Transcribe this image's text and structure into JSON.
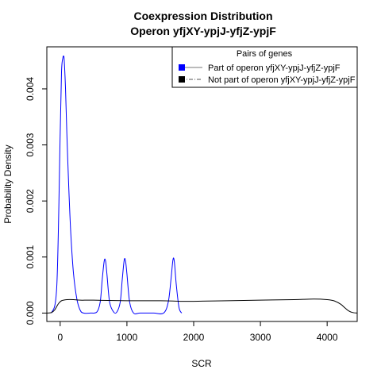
{
  "chart_data": {
    "type": "line",
    "title": "Coexpression Distribution",
    "subtitle": "Operon yfjXY-ypjJ-yfjZ-ypjF",
    "xlabel": "SCR",
    "ylabel": "Probability Density",
    "xlim": [
      -200,
      4450
    ],
    "ylim": [
      -0.00015,
      0.00475
    ],
    "x_ticks": [
      0,
      1000,
      2000,
      3000,
      4000
    ],
    "x_tick_labels": [
      "0",
      "1000",
      "2000",
      "3000",
      "4000"
    ],
    "y_ticks": [
      0.0,
      0.001,
      0.002,
      0.003,
      0.004
    ],
    "y_tick_labels": [
      "0.000",
      "0.001",
      "0.002",
      "0.003",
      "0.004"
    ],
    "grid": false,
    "legend": {
      "title": "Pairs of genes",
      "placement": "top-right",
      "entries": [
        {
          "label": "Part of operon yfjXY-ypjJ-yfjZ-ypjF",
          "color": "#0000ff",
          "line": "solid"
        },
        {
          "label": "Not part of operon yfjXY-ypjJ-yfjZ-ypjF",
          "color": "#000000",
          "line": "dashdot"
        }
      ]
    },
    "series": [
      {
        "color": "#0000ff",
        "x": [
          -130,
          -50,
          0,
          20,
          40,
          50,
          60,
          80,
          100,
          130,
          160,
          200,
          250,
          300,
          350,
          450,
          550,
          600,
          630,
          660,
          680,
          700,
          740,
          800,
          850,
          900,
          930,
          960,
          980,
          1000,
          1040,
          1100,
          1200,
          1400,
          1550,
          1620,
          1660,
          1690,
          1710,
          1740,
          1780,
          1820
        ],
        "y": [
          0.0,
          0.0005,
          0.0032,
          0.0043,
          0.00455,
          0.00458,
          0.00452,
          0.004,
          0.0032,
          0.0022,
          0.0014,
          0.0007,
          0.00025,
          5e-05,
          0.0,
          0.0,
          2e-05,
          0.0002,
          0.0006,
          0.00093,
          0.00093,
          0.0007,
          0.0002,
          2e-05,
          2e-05,
          0.0002,
          0.0006,
          0.00095,
          0.00092,
          0.0007,
          0.0002,
          0.0,
          0.0,
          0.0,
          0.0,
          0.0002,
          0.0006,
          0.00095,
          0.00092,
          0.0005,
          0.0001,
          0.0
        ]
      },
      {
        "color": "#000000",
        "x": [
          -200,
          -130,
          -80,
          -30,
          20,
          100,
          200,
          300,
          500,
          1000,
          1500,
          1800,
          2000,
          2500,
          3000,
          3500,
          3800,
          4000,
          4100,
          4200,
          4260,
          4320,
          4380,
          4450
        ],
        "y": [
          0.0,
          1e-05,
          6e-05,
          0.00016,
          0.00022,
          0.00024,
          0.00024,
          0.00023,
          0.00023,
          0.00022,
          0.00022,
          0.00021,
          0.00021,
          0.00022,
          0.00023,
          0.00024,
          0.00025,
          0.00024,
          0.00022,
          0.00016,
          0.0001,
          4e-05,
          1e-05,
          0.0
        ]
      }
    ]
  }
}
